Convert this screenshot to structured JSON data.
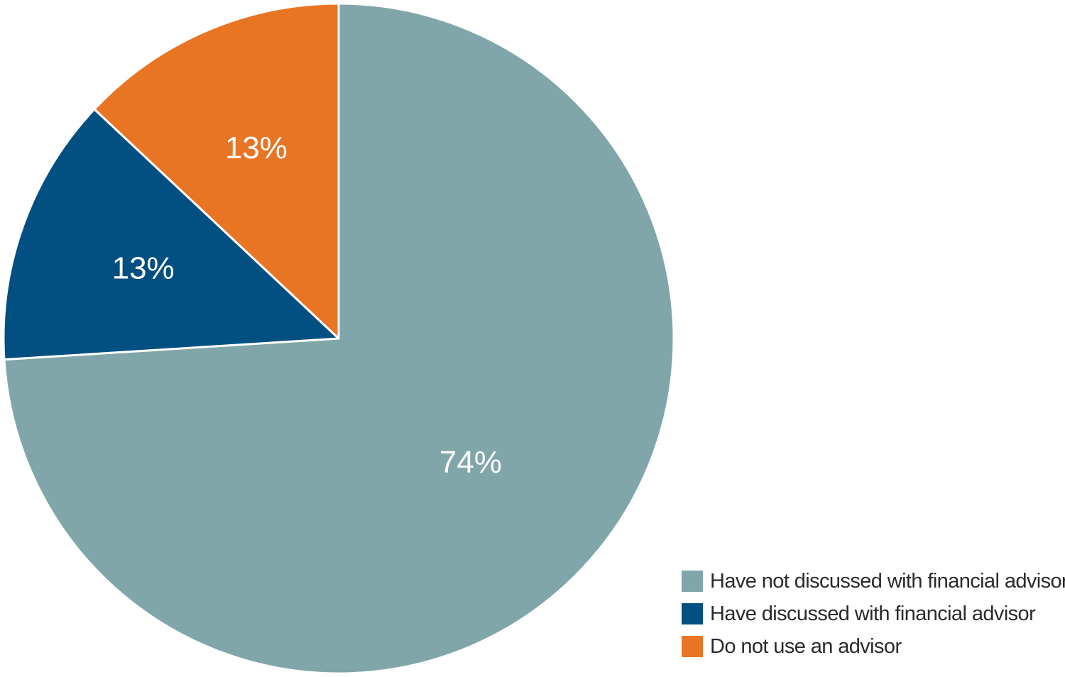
{
  "chart_data": {
    "type": "pie",
    "title": "",
    "start_angle_deg": 0,
    "direction": "clockwise",
    "slices": [
      {
        "label": "Have not discussed with financial advisor",
        "value": 74,
        "value_label": "74%",
        "color": "#80A6A9"
      },
      {
        "label": "Have discussed with financial advisor",
        "value": 13,
        "value_label": "13%",
        "color": "#024F81"
      },
      {
        "label": "Do not use an advisor",
        "value": 13,
        "value_label": "13%",
        "color": "#E87524"
      }
    ],
    "legend": {
      "position": "bottom-right",
      "entries": [
        "Have not discussed with financial advisor",
        "Have discussed with financial advisor",
        "Do not use an advisor"
      ]
    }
  }
}
